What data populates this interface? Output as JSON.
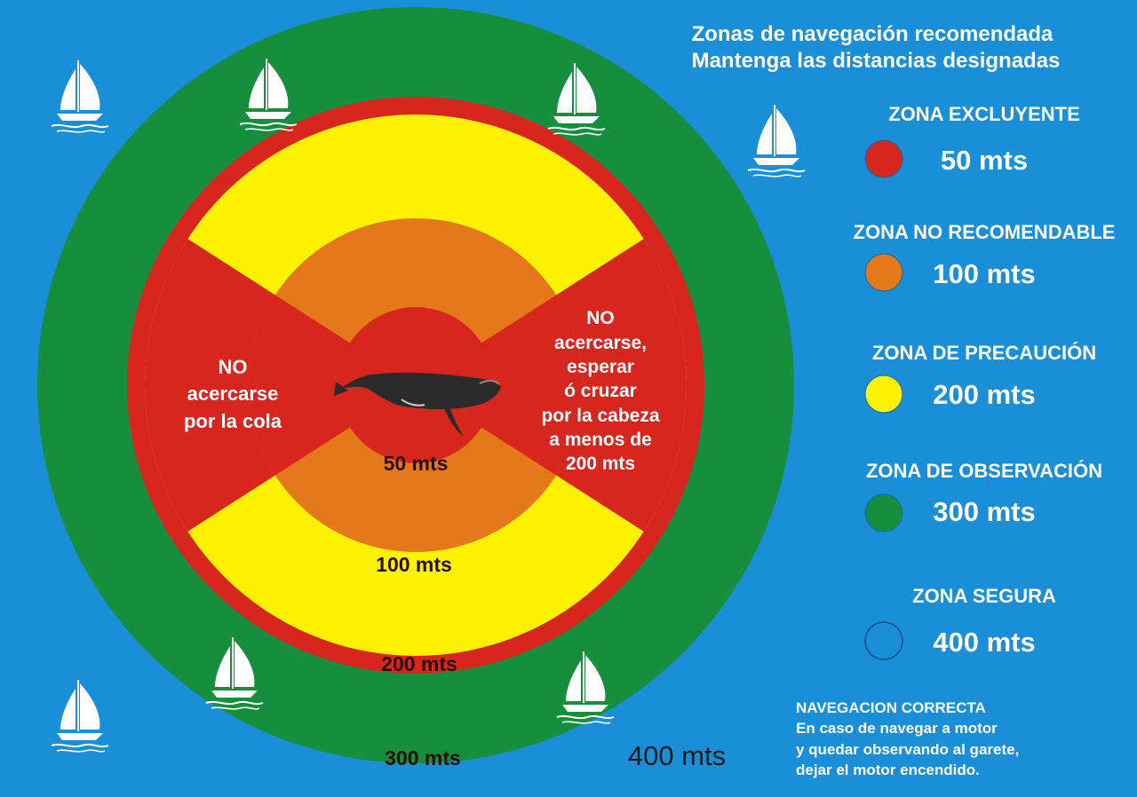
{
  "colors": {
    "sea": "#1a8fd8",
    "safe_ring": "#158c3c",
    "exclusion": "#d8261f",
    "caution": "#fff200",
    "not_recommended": "#e5781a",
    "observation": "#178d3e",
    "dark_text": "#2a0f0a",
    "white": "#ffffff"
  },
  "header": {
    "line1": "Zonas de navegación recomendada",
    "line2": "Mantenga las distancias designadas"
  },
  "legend": [
    {
      "title": "ZONA EXCLUYENTE",
      "value": "50 mts",
      "color": "#d8261f"
    },
    {
      "title": "ZONA NO RECOMENDABLE",
      "value": "100 mts",
      "color": "#e5781a"
    },
    {
      "title": "ZONA DE PRECAUCIÓN",
      "value": "200 mts",
      "color": "#fff200"
    },
    {
      "title": "ZONA DE OBSERVACIÓN",
      "value": "300 mts",
      "color": "#178d3e"
    },
    {
      "title": "ZONA SEGURA",
      "value": "400 mts",
      "color": "#1a8fd8"
    }
  ],
  "diagram": {
    "tail_text": [
      "NO",
      "acercarse",
      "por la cola"
    ],
    "head_text": [
      "NO",
      "acercarse,",
      "esperar",
      "ó cruzar",
      "por la cabeza",
      "a menos de",
      "200 mts"
    ],
    "ring_labels": {
      "r50": "50 mts",
      "r100": "100 mts",
      "r200": "200 mts",
      "r300": "300 mts",
      "r400": "400 mts"
    },
    "animal": "whale-icon"
  },
  "footer": {
    "title": "NAVEGACION CORRECTA",
    "line1": "En caso de navegar a motor",
    "line2": "y quedar  observando al garete,",
    "line3": "dejar el motor encendido."
  },
  "icons": [
    "sailboat-icon"
  ]
}
